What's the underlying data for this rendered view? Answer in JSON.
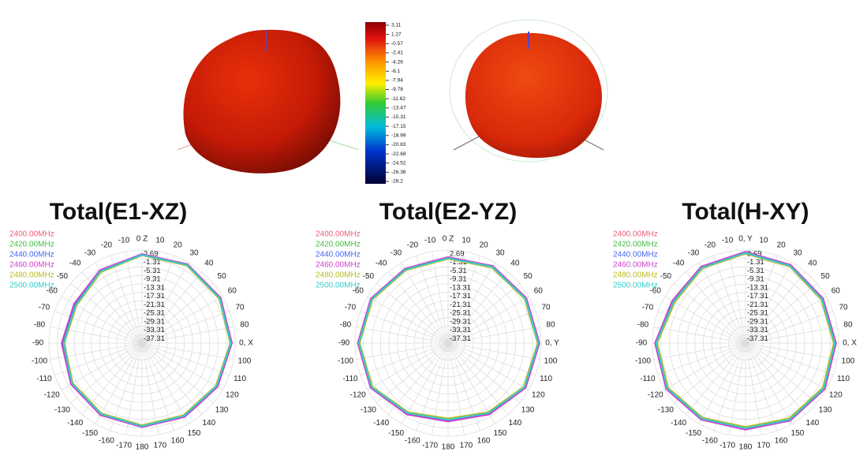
{
  "colorbar": {
    "ticks": [
      3.11,
      1.27,
      -0.57,
      -2.41,
      -4.26,
      -6.1,
      -7.94,
      -9.78,
      -11.62,
      -13.47,
      -15.31,
      -17.15,
      -18.99,
      -20.83,
      -22.68,
      -24.52,
      -26.36,
      -28.2
    ]
  },
  "chart_data": [
    {
      "type": "polar",
      "title": "Total(E1-XZ)",
      "rlim": [
        -41.31,
        2.69
      ],
      "rticks": [
        2.69,
        -1.31,
        -5.31,
        -9.31,
        -13.31,
        -17.31,
        -21.31,
        -25.31,
        -29.31,
        -33.31,
        -37.31
      ],
      "angle_ticks": [
        {
          "value": 0,
          "label": "0 Z"
        },
        10,
        20,
        30,
        40,
        50,
        60,
        70,
        80,
        {
          "value": 90,
          "label": "0, X"
        },
        100,
        110,
        120,
        130,
        140,
        150,
        160,
        170,
        180,
        -170,
        -160,
        -150,
        -140,
        -130,
        -120,
        -110,
        -100,
        -90,
        -80,
        -70,
        -60,
        -50,
        -40,
        -30,
        -20,
        -10
      ],
      "x": [
        0,
        30,
        60,
        90,
        120,
        150,
        180,
        210,
        240,
        270,
        300,
        330
      ],
      "series": [
        {
          "name": "2400.00MHz",
          "color": "#e8607a",
          "values": [
            0.5,
            1.5,
            1.2,
            0.8,
            -0.5,
            -1.5,
            -2,
            -2.5,
            -3,
            -4,
            -5,
            -2
          ]
        },
        {
          "name": "2420.00MHz",
          "color": "#44bb44",
          "values": [
            0.3,
            1.2,
            1,
            0.5,
            -0.8,
            -1.8,
            -2.2,
            -2.8,
            -3.3,
            -4.4,
            -5.4,
            -2.3
          ]
        },
        {
          "name": "2440.00MHz",
          "color": "#4466ee",
          "values": [
            0.6,
            1.6,
            1.4,
            1,
            -0.3,
            -1.2,
            -1.8,
            -2.2,
            -2.7,
            -3.6,
            -4.6,
            -1.8
          ]
        },
        {
          "name": "2460.00MHz",
          "color": "#cc44cc",
          "values": [
            0.8,
            1.8,
            1.6,
            1.2,
            0,
            -1,
            -1.6,
            -2,
            -2.5,
            -3.3,
            -4.2,
            -1.5
          ]
        },
        {
          "name": "2480.00MHz",
          "color": "#bbbb22",
          "values": [
            0.2,
            1,
            0.8,
            0.4,
            -1,
            -2,
            -2.5,
            -3,
            -3.5,
            -4.6,
            -5.6,
            -2.5
          ]
        },
        {
          "name": "2500.00MHz",
          "color": "#33cccc",
          "values": [
            0.4,
            1.4,
            1.1,
            0.7,
            -0.6,
            -1.6,
            -2.1,
            -2.6,
            -3.1,
            -4.2,
            -5.2,
            -2.1
          ]
        }
      ]
    },
    {
      "type": "polar",
      "title": "Total(E2-YZ)",
      "rlim": [
        -41.31,
        2.69
      ],
      "rticks": [
        2.69,
        -1.31,
        -5.31,
        -9.31,
        -13.31,
        -17.31,
        -21.31,
        -25.31,
        -29.31,
        -33.31,
        -37.31
      ],
      "angle_ticks": [
        {
          "value": 0,
          "label": "0 Z"
        },
        10,
        20,
        30,
        40,
        50,
        60,
        70,
        80,
        {
          "value": 90,
          "label": "0, Y"
        },
        100,
        110,
        120,
        130,
        140,
        150,
        160,
        170,
        180,
        -170,
        -160,
        -150,
        -140,
        -130,
        -120,
        -110,
        -100,
        -90,
        -80,
        -70,
        -60,
        -50,
        -40,
        -30,
        -20,
        -10
      ],
      "x": [
        0,
        30,
        60,
        90,
        120,
        150,
        180,
        210,
        240,
        270,
        300,
        330
      ],
      "series": [
        {
          "name": "2400.00MHz",
          "color": "#e8607a",
          "values": [
            -1,
            0.5,
            1,
            1.5,
            0.5,
            -3,
            -5,
            -3,
            0.5,
            1,
            0.5,
            -1
          ]
        },
        {
          "name": "2420.00MHz",
          "color": "#44bb44",
          "values": [
            -1.3,
            0.2,
            0.7,
            1.2,
            0.2,
            -3.4,
            -5.4,
            -3.3,
            0.2,
            0.7,
            0.2,
            -1.3
          ]
        },
        {
          "name": "2440.00MHz",
          "color": "#4466ee",
          "values": [
            -0.8,
            0.7,
            1.2,
            1.7,
            0.8,
            -2.7,
            -4.6,
            -2.7,
            0.8,
            1.2,
            0.7,
            -0.8
          ]
        },
        {
          "name": "2460.00MHz",
          "color": "#cc44cc",
          "values": [
            -0.6,
            0.9,
            1.4,
            1.9,
            1,
            -2.4,
            -4.3,
            -2.4,
            1,
            1.4,
            0.9,
            -0.6
          ]
        },
        {
          "name": "2480.00MHz",
          "color": "#bbbb22",
          "values": [
            -1.5,
            0,
            0.5,
            1,
            0,
            -3.6,
            -5.7,
            -3.6,
            0,
            0.5,
            0,
            -1.5
          ]
        },
        {
          "name": "2500.00MHz",
          "color": "#33cccc",
          "values": [
            -1.1,
            0.4,
            0.9,
            1.4,
            0.4,
            -3.1,
            -5.1,
            -3.1,
            0.4,
            0.9,
            0.4,
            -1.1
          ]
        }
      ]
    },
    {
      "type": "polar",
      "title": "Total(H-XY)",
      "rlim": [
        -41.31,
        2.69
      ],
      "rticks": [
        2.69,
        -1.31,
        -5.31,
        -9.31,
        -13.31,
        -17.31,
        -21.31,
        -25.31,
        -29.31,
        -33.31,
        -37.31
      ],
      "angle_ticks": [
        {
          "value": 0,
          "label": "0, Y"
        },
        10,
        20,
        30,
        40,
        50,
        60,
        70,
        80,
        {
          "value": 90,
          "label": "0, X"
        },
        100,
        110,
        120,
        130,
        140,
        150,
        160,
        170,
        180,
        -170,
        -160,
        -150,
        -140,
        -130,
        -120,
        -110,
        -100,
        -90,
        -80,
        -70,
        -60,
        -50,
        -40,
        -30,
        -20,
        -10
      ],
      "x": [
        0,
        30,
        60,
        90,
        120,
        150,
        180,
        210,
        240,
        270,
        300,
        330
      ],
      "series": [
        {
          "name": "2400.00MHz",
          "color": "#e8607a",
          "values": [
            1.5,
            1,
            0.5,
            1,
            1.5,
            0.5,
            -1,
            0,
            1.5,
            1,
            -2,
            0
          ]
        },
        {
          "name": "2420.00MHz",
          "color": "#44bb44",
          "values": [
            1.2,
            0.7,
            0.2,
            0.6,
            1.1,
            0.1,
            -1.4,
            -0.4,
            1.2,
            0.6,
            -2.4,
            -0.3
          ]
        },
        {
          "name": "2440.00MHz",
          "color": "#4466ee",
          "values": [
            1.7,
            1.2,
            0.8,
            1.3,
            1.8,
            0.8,
            -0.7,
            0.3,
            1.8,
            1.3,
            -1.6,
            0.3
          ]
        },
        {
          "name": "2460.00MHz",
          "color": "#cc44cc",
          "values": [
            1.9,
            1.4,
            1,
            1.5,
            2,
            1,
            -0.4,
            0.5,
            2,
            1.5,
            -1.3,
            0.5
          ]
        },
        {
          "name": "2480.00MHz",
          "color": "#bbbb22",
          "values": [
            1,
            0.5,
            0,
            0.4,
            0.9,
            -0.2,
            -1.7,
            -0.6,
            0.9,
            0.4,
            -2.7,
            -0.5
          ]
        },
        {
          "name": "2500.00MHz",
          "color": "#33cccc",
          "values": [
            1.4,
            0.9,
            0.4,
            0.9,
            1.4,
            0.4,
            -1.1,
            -0.1,
            1.4,
            0.9,
            -2.1,
            -0.1
          ]
        }
      ]
    }
  ]
}
